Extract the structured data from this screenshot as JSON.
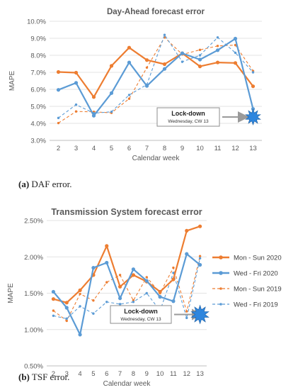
{
  "chart_data": [
    {
      "type": "line",
      "title": "Day-Ahead forecast error",
      "xlabel": "Calendar week",
      "ylabel": "MAPE",
      "ylim": [
        3.0,
        10.0
      ],
      "y_ticks": [
        "3.0%",
        "4.0%",
        "5.0%",
        "6.0%",
        "7.0%",
        "8.0%",
        "9.0%",
        "10.0%"
      ],
      "x": [
        2,
        3,
        4,
        5,
        6,
        7,
        8,
        9,
        10,
        11,
        12,
        13
      ],
      "series": [
        {
          "name": "Mon - Sun 2020",
          "color": "#ED7D31",
          "dashed": false,
          "values": [
            7.02,
            6.98,
            5.55,
            7.38,
            8.45,
            7.72,
            7.48,
            8.12,
            7.35,
            7.58,
            7.55,
            6.18
          ]
        },
        {
          "name": "Wed - Fri 2020",
          "color": "#5B9BD5",
          "dashed": false,
          "values": [
            5.97,
            6.38,
            4.45,
            5.78,
            7.58,
            6.2,
            7.2,
            8.12,
            7.75,
            8.3,
            8.98,
            4.85
          ]
        },
        {
          "name": "Mon - Sun 2019",
          "color": "#ED7D31",
          "dashed": true,
          "values": [
            4.02,
            4.7,
            4.68,
            4.62,
            5.45,
            7.28,
            9.05,
            8.05,
            8.32,
            8.55,
            8.6,
            7.08
          ]
        },
        {
          "name": "Wed - Fri 2019",
          "color": "#5B9BD5",
          "dashed": true,
          "values": [
            4.32,
            5.1,
            4.6,
            4.68,
            5.67,
            6.28,
            9.2,
            7.62,
            8.0,
            9.05,
            8.15,
            7.0
          ]
        }
      ],
      "annotation": {
        "title": "Lock-down",
        "subtitle": "Wednesday, CW 13"
      },
      "caption_label": "(a)",
      "caption_text": " DAF error.",
      "grid": true,
      "legend": "none"
    },
    {
      "type": "line",
      "title": "Transmission System forecast error",
      "xlabel": "Calendar week",
      "ylabel": "MAPE",
      "ylim": [
        0.5,
        2.5
      ],
      "y_ticks": [
        "0.50%",
        "1.00%",
        "1.50%",
        "2.00%",
        "2.50%"
      ],
      "x": [
        2,
        3,
        4,
        5,
        6,
        7,
        8,
        9,
        10,
        11,
        12,
        13
      ],
      "series": [
        {
          "name": "Mon - Sun 2020",
          "color": "#ED7D31",
          "dashed": false,
          "values": [
            1.42,
            1.37,
            1.54,
            1.75,
            2.15,
            1.59,
            1.75,
            1.66,
            1.52,
            1.69,
            2.36,
            2.42
          ]
        },
        {
          "name": "Wed - Fri 2020",
          "color": "#5B9BD5",
          "dashed": false,
          "values": [
            1.52,
            1.3,
            0.93,
            1.85,
            1.92,
            1.43,
            1.83,
            1.67,
            1.45,
            1.39,
            2.04,
            1.89
          ]
        },
        {
          "name": "Mon - Sun 2019",
          "color": "#ED7D31",
          "dashed": true,
          "values": [
            1.26,
            1.12,
            1.49,
            1.4,
            1.65,
            1.75,
            1.4,
            1.72,
            1.5,
            1.85,
            1.25,
            2.01
          ]
        },
        {
          "name": "Wed - Fri 2019",
          "color": "#5B9BD5",
          "dashed": true,
          "values": [
            1.19,
            1.15,
            1.32,
            1.22,
            1.38,
            1.35,
            1.38,
            1.5,
            1.26,
            1.78,
            1.16,
            1.98
          ]
        }
      ],
      "annotation": {
        "title": "Lock-down",
        "subtitle": "Wednesday, CW 13"
      },
      "caption_label": "(b)",
      "caption_text": " TSF error.",
      "grid": true,
      "legend": "right"
    }
  ]
}
